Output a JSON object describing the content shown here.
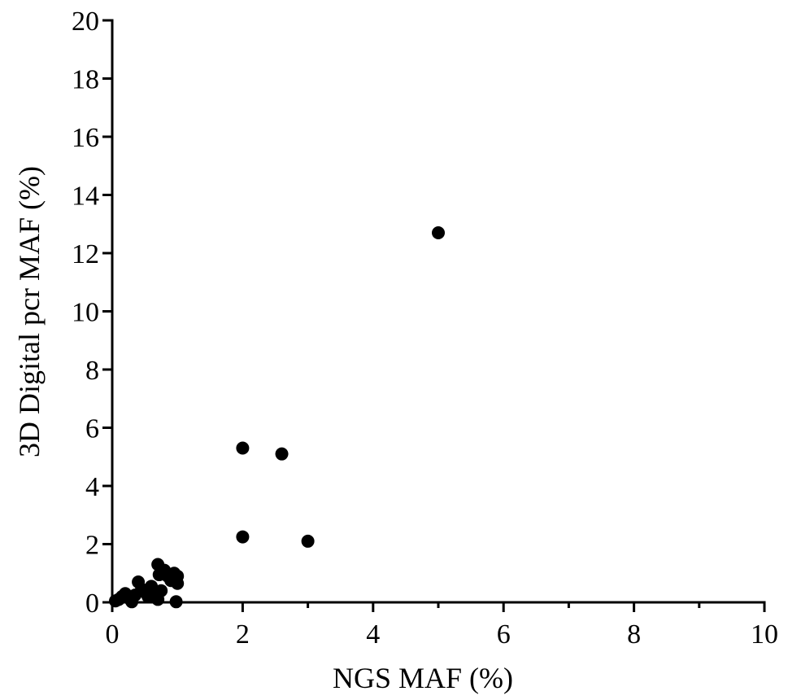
{
  "chart_data": {
    "type": "scatter",
    "xlabel": "NGS MAF (%)",
    "ylabel": "3D Digital pcr MAF (%)",
    "xlim": [
      0,
      10
    ],
    "ylim": [
      0,
      20
    ],
    "xticks": [
      0,
      2,
      4,
      6,
      8,
      10
    ],
    "yticks": [
      0,
      2,
      4,
      6,
      8,
      10,
      12,
      14,
      16,
      18,
      20
    ],
    "xtick_labels": [
      "0",
      "2",
      "4",
      "6",
      "8",
      "10"
    ],
    "ytick_labels": [
      "0",
      "2",
      "4",
      "6",
      "8",
      "10",
      "12",
      "14",
      "16",
      "18",
      "20"
    ],
    "grid": false,
    "legend": "none",
    "marker_color": "#000000",
    "points": [
      {
        "x": 0.05,
        "y": 0.05
      },
      {
        "x": 0.1,
        "y": 0.1
      },
      {
        "x": 0.15,
        "y": 0.2
      },
      {
        "x": 0.2,
        "y": 0.3
      },
      {
        "x": 0.25,
        "y": 0.15
      },
      {
        "x": 0.3,
        "y": 0.02
      },
      {
        "x": 0.35,
        "y": 0.25
      },
      {
        "x": 0.4,
        "y": 0.7
      },
      {
        "x": 0.45,
        "y": 0.45
      },
      {
        "x": 0.5,
        "y": 0.35
      },
      {
        "x": 0.55,
        "y": 0.2
      },
      {
        "x": 0.6,
        "y": 0.55
      },
      {
        "x": 0.65,
        "y": 0.3
      },
      {
        "x": 0.7,
        "y": 0.1
      },
      {
        "x": 0.7,
        "y": 1.3
      },
      {
        "x": 0.72,
        "y": 0.95
      },
      {
        "x": 0.75,
        "y": 0.4
      },
      {
        "x": 0.8,
        "y": 1.1
      },
      {
        "x": 0.85,
        "y": 0.9
      },
      {
        "x": 0.9,
        "y": 0.75
      },
      {
        "x": 0.95,
        "y": 1.0
      },
      {
        "x": 1.0,
        "y": 0.65
      },
      {
        "x": 1.0,
        "y": 0.9
      },
      {
        "x": 0.98,
        "y": 0.02
      },
      {
        "x": 2.0,
        "y": 5.3
      },
      {
        "x": 2.0,
        "y": 2.25
      },
      {
        "x": 2.6,
        "y": 5.1
      },
      {
        "x": 3.0,
        "y": 2.1
      },
      {
        "x": 5.0,
        "y": 12.7
      }
    ]
  }
}
